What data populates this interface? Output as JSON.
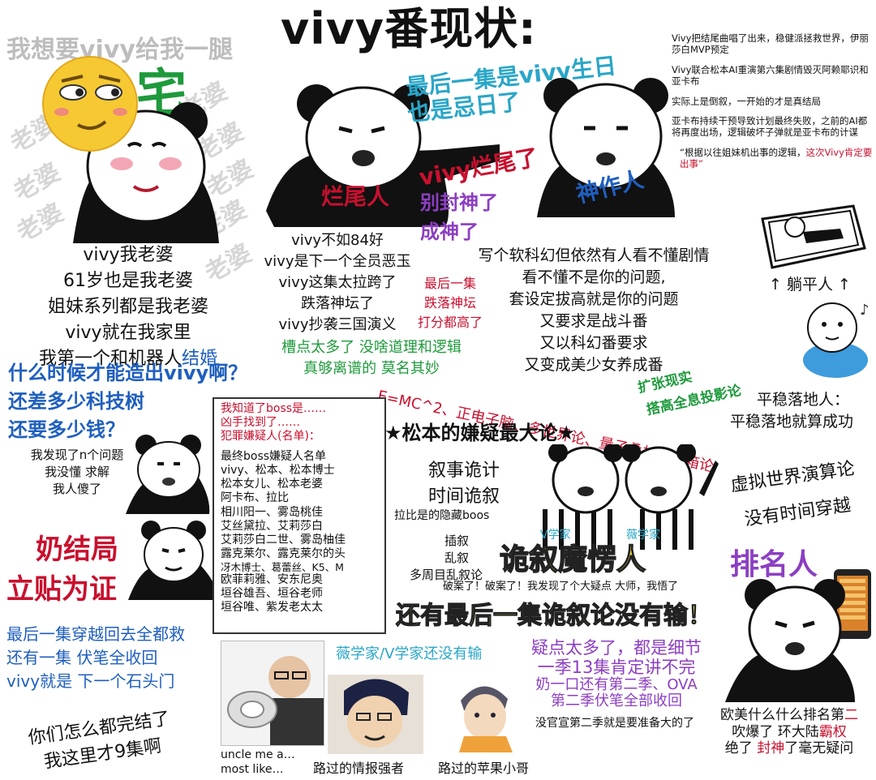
{
  "title": "vivy番现状:",
  "topleft_header": "我想要vivy给我一腿",
  "zhai_char": "宅",
  "watermark_word": "老婆",
  "left_block_lines": [
    "vivy我老婆",
    "61岁也是我老婆",
    "姐妹系列都是我老婆",
    "vivy就在我家里",
    "我第一个和机器人",
    "结婚"
  ],
  "blue_question_lines": [
    "什么时候才能造出vivy啊？",
    "还差多少科技树",
    "还要多少钱？"
  ],
  "panda_left_caption": [
    "我发现了n个问题",
    "我没懂  求解",
    "我人傻了"
  ],
  "red_big_lines": [
    "奶结局",
    "立贴为证"
  ],
  "blue_bottom_left": [
    "最后一集穿越回去全都救",
    "还有一集  伏笔全收回",
    "vivy就是  下一个石头门"
  ],
  "bottom_left_finish": [
    "你们怎么都完结了",
    "我这里才9集啊"
  ],
  "center_top_label": "烂尾人",
  "center_list": [
    "vivy不如84好",
    "vivy是下一个全员恶玉",
    "vivy这集太拉跨了",
    "跌落神坛了",
    "vivy抄袭三国演义"
  ],
  "center_red_small": [
    "最后一集",
    "跌落神坛",
    "打分都高了"
  ],
  "center_green_lines": [
    "槽点太多了 没啥道理和逻辑",
    "真够离谱的 莫名其妙"
  ],
  "blue_banner": [
    "最后一集是vivy生日",
    "也是忌日了"
  ],
  "red_banner": "vivy烂尾了",
  "purple_lines": [
    "别封神了",
    "成神了"
  ],
  "shenzuo_label": "神作人",
  "right_notes": [
    "Vivy把结尾曲唱了出来，稳健派拯救世界，伊丽莎白MVP预定",
    "Vivy联合松本AI重演第六集剧情毁灭阿赖耶识和亚卡布",
    "实际上是倒叙，一开始的才是真结局",
    "亚卡布持续干预导致计划最终失败，之前的AI都将再度出场，逻辑破坏子弹就是亚卡布的计谋"
  ],
  "right_note_quote": "“根据以往姐妹机出事的逻辑，",
  "right_note_quote_red": "这次Vivy肯定要出事”",
  "middle_lines": [
    "写个软科幻但依然有人看不懂剧情",
    "看不懂不是你的问题,",
    "套设定拔高就是你的问题",
    "又要求是战斗番",
    "又以科幻番要求",
    "又变成美少女养成番"
  ],
  "lie_label": "↑ 躺平人 ↑",
  "pingwen_lines": [
    "平稳落地人：",
    "平稳落地就算成功"
  ],
  "green_expand": [
    "扩张现实",
    "搭高全息投影论"
  ],
  "red_diag": "E=MC^2、正电子脑、多世界论、量子叠加、猫箱论",
  "boss_box_red": [
    "我知道了boss是……",
    "凶手找到了……",
    "犯罪嫌疑人(名单)："
  ],
  "boss_box_list": [
    "最终boss嫌疑人名单",
    "vivy、松本、松本博士",
    "松本女儿、松本老婆",
    "阿卡布、拉比",
    "相川阳一、雾岛桃佳",
    "艾丝黛拉、艾莉莎白",
    "艾莉莎白二世、雾岛柚佳",
    "露克莱尔、露克莱尔的头",
    "冴木博士、葛蕾丝、K5、M",
    "欧菲莉雅、安东尼奥",
    "垣谷雄吾、垣谷老师",
    "垣谷唯、紫发老太太"
  ],
  "matsumoto_title": "★松本的嫌疑最大论★",
  "narr_lines": [
    "叙事诡计",
    "时间诡叙"
  ],
  "virtual_lines": [
    "虚拟世界演算论",
    "没有时间穿越"
  ],
  "rabi_boss": "拉比是的隐藏boos",
  "chaxu": [
    "插叙",
    "乱叙",
    "多周目乱叙论"
  ],
  "v_label": "V学家",
  "wei_label": "薇学家",
  "guixu": "诡叙魔愣人",
  "solved_line": "破案了！破案了！我发现了个大疑点  大师，我悟了",
  "still_last": "还有最后一集诡叙论没有输！",
  "paiming": "排名人",
  "wei_v_not_lose": "薇学家/V学家还没有输",
  "doubts_lines": [
    "疑点太多了，都是细节",
    "一季13集肯定讲不完",
    "奶一口还有第二季、OVA",
    "第二季伏笔全部收回"
  ],
  "no_official": "没官宣第二季就是要准备大的了",
  "ranking_lines": [
    "欧美什么什么排名第",
    "二",
    "吹爆了  环大陆",
    "霸权",
    "绝了  ",
    "封神",
    "了毫无疑问"
  ],
  "caption_uncle": [
    "uncle me a…",
    "most like…"
  ],
  "caption_intel": "路过的情报强者",
  "caption_apple": "路过的苹果小哥",
  "colors": {
    "red": "#c8102e",
    "blue": "#1f5fbf",
    "green": "#1e9a3c",
    "purple": "#8c3ec2",
    "yellow": "#f5e23a",
    "teal": "#2aa6c8"
  }
}
